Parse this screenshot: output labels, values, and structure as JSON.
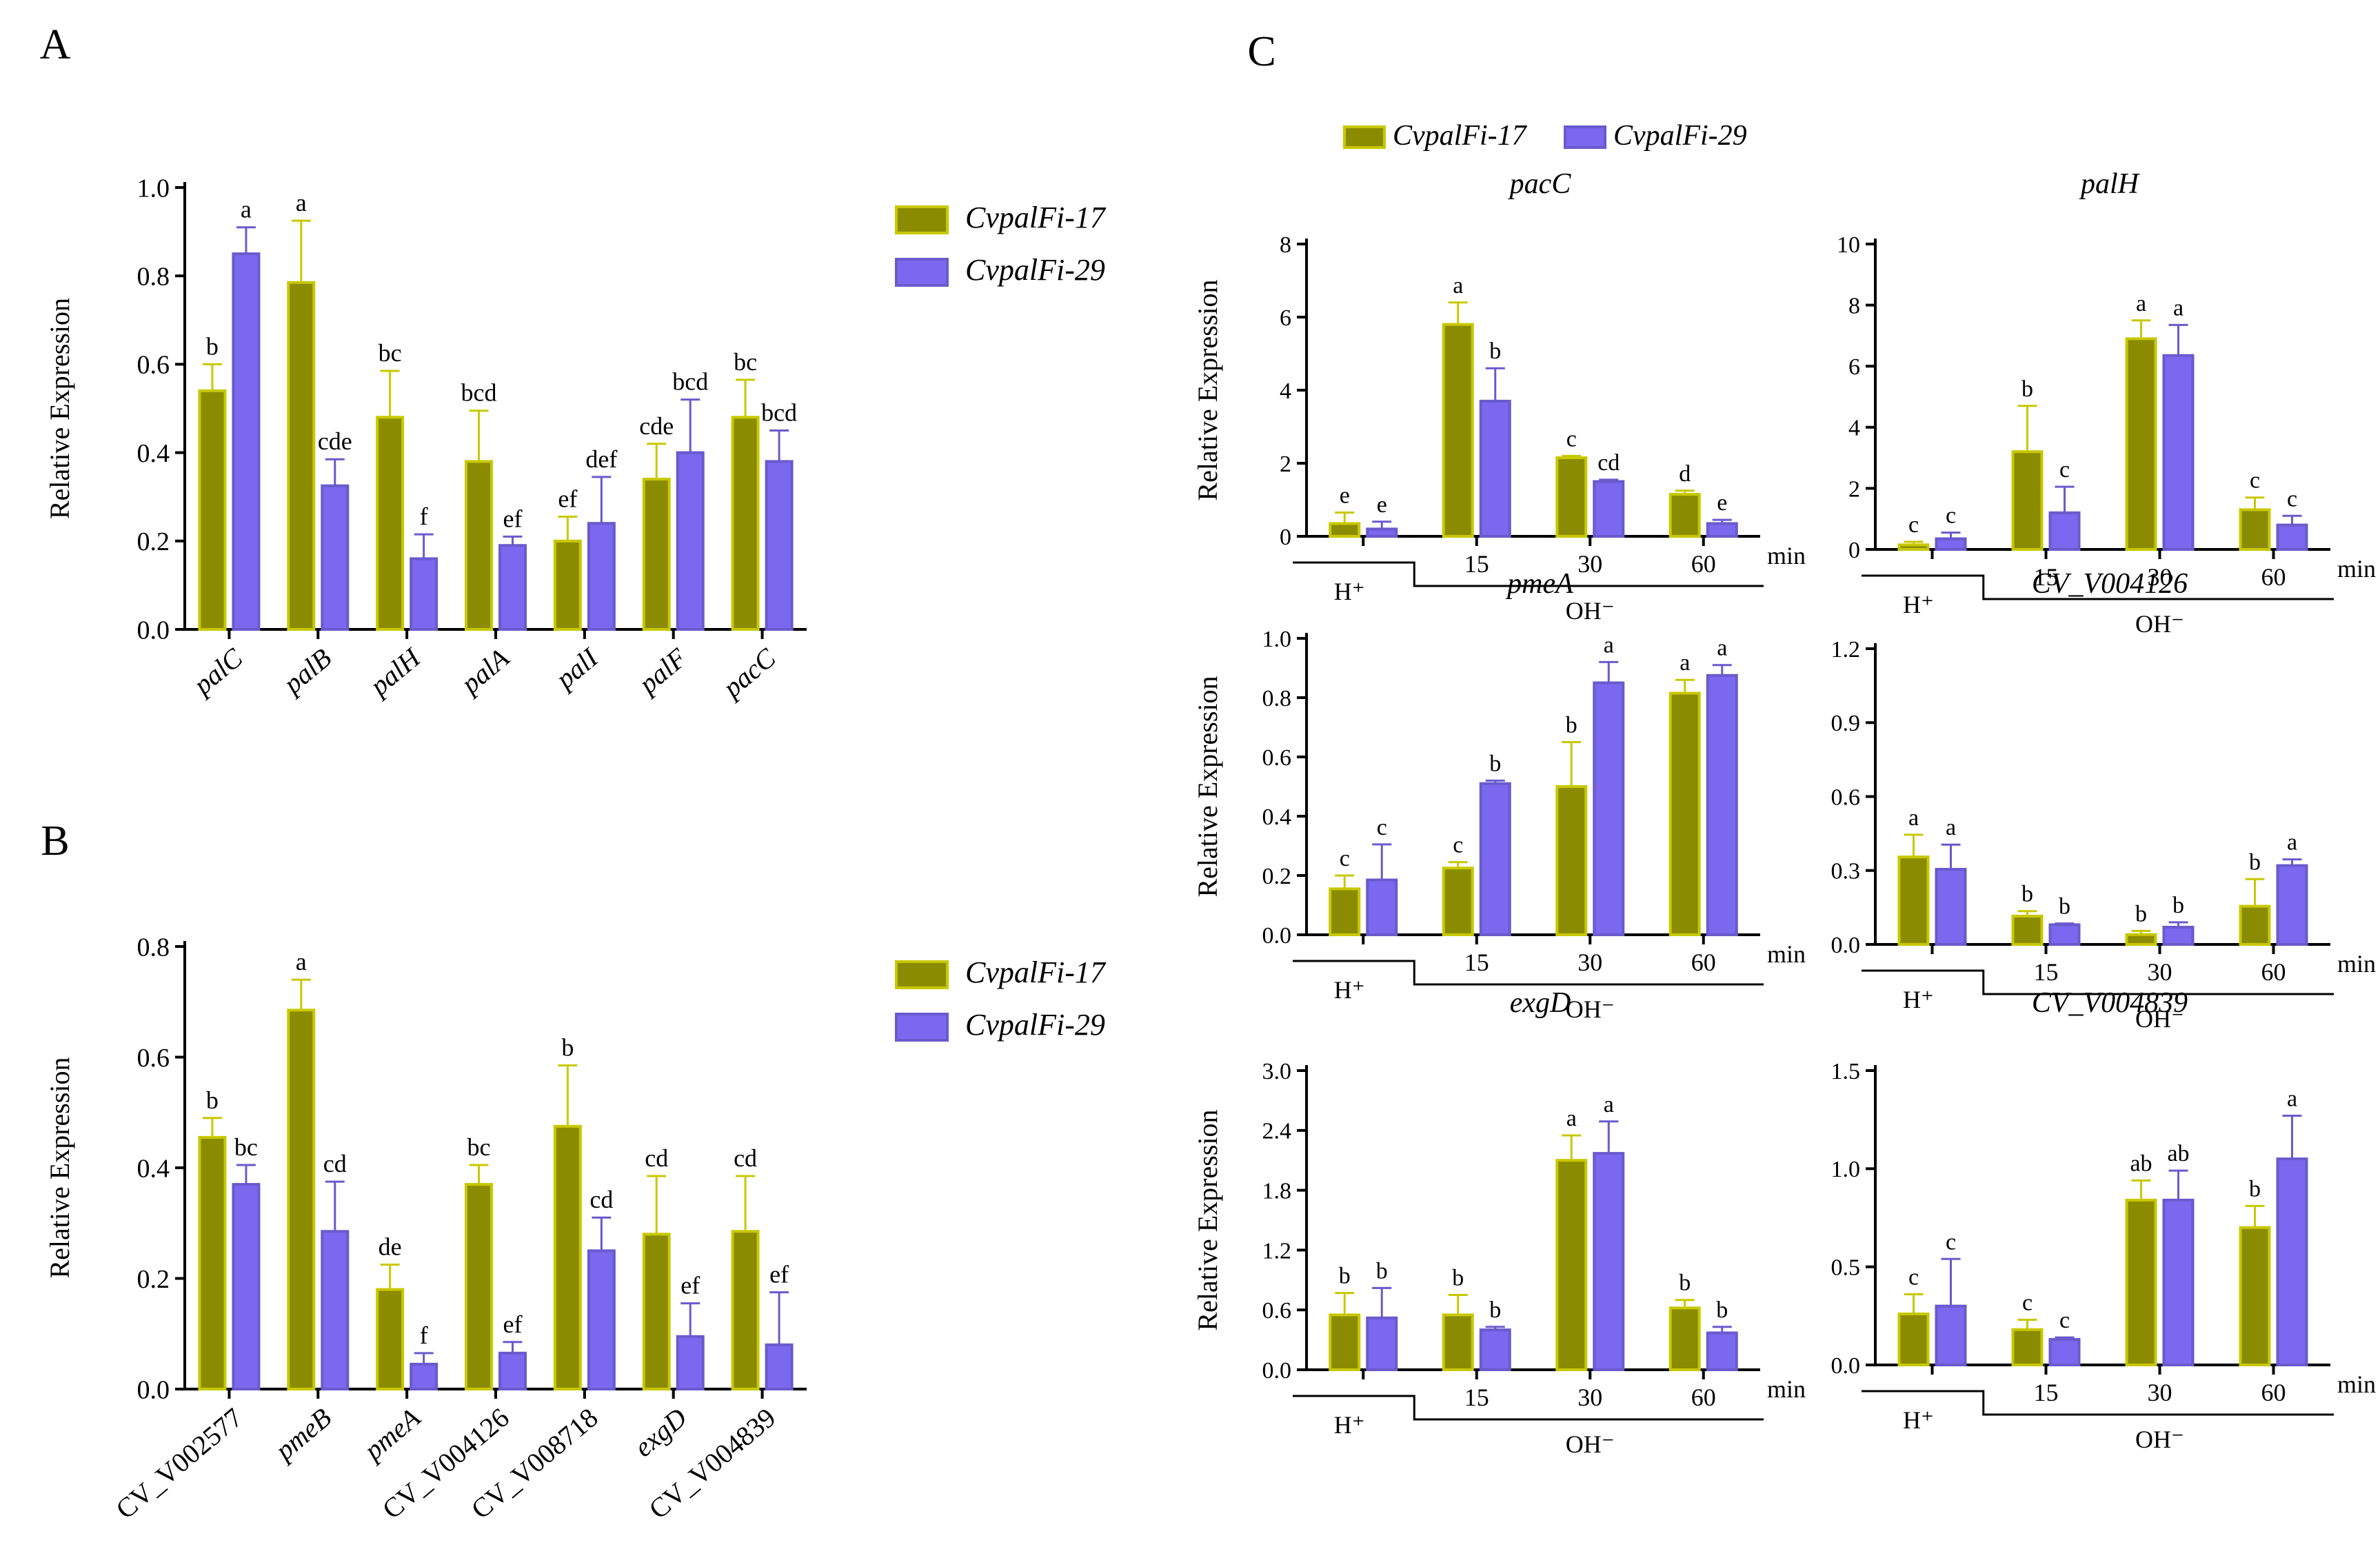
{
  "colors": {
    "series1": "#8B8B00",
    "series1_edge": "#C8C800",
    "series2": "#7B68EE",
    "series2_edge": "#6A5ACD",
    "axis": "#000000"
  },
  "legend_series": [
    "CvpalFi-17",
    "CvpalFi-29"
  ],
  "legend_parts": {
    "prefix": "Cvpal",
    "F": "F",
    "suffix17": "i-17",
    "suffix29": "i-29"
  },
  "x_axis_unit": "min",
  "treatment_labels": {
    "acid": "H⁺",
    "base": "OH⁻"
  },
  "chart_data": [
    {
      "id": "A",
      "panel_label": "A",
      "type": "bar",
      "title": "",
      "xlabel": "",
      "ylabel": "Relative Expression",
      "ylim": [
        0,
        1.0
      ],
      "yticks": [
        "0.0",
        "0.2",
        "0.4",
        "0.6",
        "0.8",
        "1.0"
      ],
      "categories": [
        "palC",
        "palB",
        "palH",
        "palA",
        "palI",
        "palF",
        "pacC"
      ],
      "series": [
        {
          "name": "CvpalFi-17",
          "values": [
            0.54,
            0.785,
            0.48,
            0.38,
            0.2,
            0.34,
            0.48
          ],
          "errors": [
            0.06,
            0.14,
            0.105,
            0.115,
            0.055,
            0.08,
            0.085
          ],
          "letters": [
            "b",
            "a",
            "bc",
            "bcd",
            "ef",
            "cde",
            "bc"
          ]
        },
        {
          "name": "CvpalFi-29",
          "values": [
            0.85,
            0.325,
            0.16,
            0.19,
            0.24,
            0.4,
            0.38
          ],
          "errors": [
            0.06,
            0.06,
            0.055,
            0.02,
            0.105,
            0.12,
            0.07
          ],
          "letters": [
            "a",
            "cde",
            "f",
            "ef",
            "def",
            "bcd",
            "bcd"
          ]
        }
      ]
    },
    {
      "id": "B",
      "panel_label": "B",
      "type": "bar",
      "title": "",
      "xlabel": "",
      "ylabel": "Relative Expression",
      "ylim": [
        0,
        0.8
      ],
      "yticks": [
        "0.0",
        "0.2",
        "0.4",
        "0.6",
        "0.8"
      ],
      "categories": [
        "CV_V002577",
        "pmeB",
        "pmeA",
        "CV_V004126",
        "CV_V008718",
        "exgD",
        "CV_V004839"
      ],
      "series": [
        {
          "name": "CvpalFi-17",
          "values": [
            0.455,
            0.685,
            0.18,
            0.37,
            0.475,
            0.28,
            0.285
          ],
          "errors": [
            0.035,
            0.055,
            0.045,
            0.035,
            0.11,
            0.105,
            0.1
          ],
          "letters": [
            "b",
            "a",
            "de",
            "bc",
            "b",
            "cd",
            "cd"
          ]
        },
        {
          "name": "CvpalFi-29",
          "values": [
            0.37,
            0.285,
            0.045,
            0.065,
            0.25,
            0.095,
            0.08
          ],
          "errors": [
            0.035,
            0.09,
            0.02,
            0.02,
            0.06,
            0.06,
            0.095
          ],
          "letters": [
            "bc",
            "cd",
            "f",
            "ef",
            "cd",
            "ef",
            "ef"
          ]
        }
      ]
    },
    {
      "id": "C1",
      "panel_label": "C",
      "type": "bar",
      "title": "pacC",
      "xlabel": "",
      "ylabel": "Relative Expression",
      "ylim": [
        0,
        8
      ],
      "yticks": [
        "0",
        "2",
        "4",
        "6",
        "8"
      ],
      "categories": [
        "H⁺",
        "15",
        "30",
        "60"
      ],
      "series": [
        {
          "name": "CvpalFi-17",
          "values": [
            0.35,
            5.8,
            2.15,
            1.15
          ],
          "errors": [
            0.3,
            0.6,
            0.05,
            0.1
          ],
          "letters": [
            "e",
            "a",
            "c",
            "d"
          ]
        },
        {
          "name": "CvpalFi-29",
          "values": [
            0.2,
            3.7,
            1.5,
            0.35
          ],
          "errors": [
            0.2,
            0.9,
            0.05,
            0.1
          ],
          "letters": [
            "e",
            "b",
            "cd",
            "e"
          ]
        }
      ]
    },
    {
      "id": "C2",
      "type": "bar",
      "title": "palH",
      "xlabel": "",
      "ylabel": "",
      "ylim": [
        0,
        10
      ],
      "yticks": [
        "0",
        "2",
        "4",
        "6",
        "8",
        "10"
      ],
      "categories": [
        "H⁺",
        "15",
        "30",
        "60"
      ],
      "series": [
        {
          "name": "CvpalFi-17",
          "values": [
            0.15,
            3.2,
            6.9,
            1.3
          ],
          "errors": [
            0.1,
            1.5,
            0.6,
            0.4
          ],
          "letters": [
            "c",
            "b",
            "a",
            "c"
          ]
        },
        {
          "name": "CvpalFi-29",
          "values": [
            0.35,
            1.2,
            6.35,
            0.8
          ],
          "errors": [
            0.2,
            0.85,
            1.0,
            0.3
          ],
          "letters": [
            "c",
            "c",
            "a",
            "c"
          ]
        }
      ]
    },
    {
      "id": "C3",
      "type": "bar",
      "title": "pmeA",
      "xlabel": "",
      "ylabel": "Relative Expression",
      "ylim": [
        0,
        1.0
      ],
      "yticks": [
        "0.0",
        "0.2",
        "0.4",
        "0.6",
        "0.8",
        "1.0"
      ],
      "categories": [
        "H⁺",
        "15",
        "30",
        "60"
      ],
      "series": [
        {
          "name": "CvpalFi-17",
          "values": [
            0.155,
            0.225,
            0.5,
            0.815
          ],
          "errors": [
            0.045,
            0.02,
            0.15,
            0.045
          ],
          "letters": [
            "c",
            "c",
            "b",
            "a"
          ]
        },
        {
          "name": "CvpalFi-29",
          "values": [
            0.185,
            0.51,
            0.85,
            0.875
          ],
          "errors": [
            0.12,
            0.01,
            0.07,
            0.035
          ],
          "letters": [
            "c",
            "b",
            "a",
            "a"
          ]
        }
      ]
    },
    {
      "id": "C4",
      "type": "bar",
      "title": "CV_V004126",
      "xlabel": "",
      "ylabel": "",
      "ylim": [
        0,
        1.2
      ],
      "yticks": [
        "0.0",
        "0.3",
        "0.6",
        "0.9",
        "1.2"
      ],
      "categories": [
        "H⁺",
        "15",
        "30",
        "60"
      ],
      "series": [
        {
          "name": "CvpalFi-17",
          "values": [
            0.355,
            0.115,
            0.04,
            0.155
          ],
          "errors": [
            0.09,
            0.02,
            0.015,
            0.11
          ],
          "letters": [
            "a",
            "b",
            "b",
            "b"
          ]
        },
        {
          "name": "CvpalFi-29",
          "values": [
            0.305,
            0.08,
            0.07,
            0.32
          ],
          "errors": [
            0.1,
            0.005,
            0.02,
            0.025
          ],
          "letters": [
            "a",
            "b",
            "b",
            "a"
          ]
        }
      ]
    },
    {
      "id": "C5",
      "type": "bar",
      "title": "exgD",
      "xlabel": "",
      "ylabel": "Relative Expression",
      "ylim": [
        0,
        3.0
      ],
      "yticks": [
        "0.0",
        "0.6",
        "1.2",
        "1.8",
        "2.4",
        "3.0"
      ],
      "categories": [
        "H⁺",
        "15",
        "30",
        "60"
      ],
      "series": [
        {
          "name": "CvpalFi-17",
          "values": [
            0.55,
            0.55,
            2.1,
            0.62
          ],
          "errors": [
            0.22,
            0.2,
            0.25,
            0.08
          ],
          "letters": [
            "b",
            "b",
            "a",
            "b"
          ]
        },
        {
          "name": "CvpalFi-29",
          "values": [
            0.52,
            0.4,
            2.17,
            0.37
          ],
          "errors": [
            0.3,
            0.03,
            0.32,
            0.06
          ],
          "letters": [
            "b",
            "b",
            "a",
            "b"
          ]
        }
      ]
    },
    {
      "id": "C6",
      "type": "bar",
      "title": "CV_V004839",
      "xlabel": "",
      "ylabel": "",
      "ylim": [
        0,
        1.5
      ],
      "yticks": [
        "0.0",
        "0.5",
        "1.0",
        "1.5"
      ],
      "categories": [
        "H⁺",
        "15",
        "30",
        "60"
      ],
      "series": [
        {
          "name": "CvpalFi-17",
          "values": [
            0.26,
            0.18,
            0.84,
            0.7
          ],
          "errors": [
            0.1,
            0.05,
            0.1,
            0.11
          ],
          "letters": [
            "c",
            "c",
            "ab",
            "b"
          ]
        },
        {
          "name": "CvpalFi-29",
          "values": [
            0.3,
            0.13,
            0.84,
            1.05
          ],
          "errors": [
            0.24,
            0.01,
            0.15,
            0.22
          ],
          "letters": [
            "c",
            "c",
            "ab",
            "a"
          ]
        }
      ]
    }
  ]
}
